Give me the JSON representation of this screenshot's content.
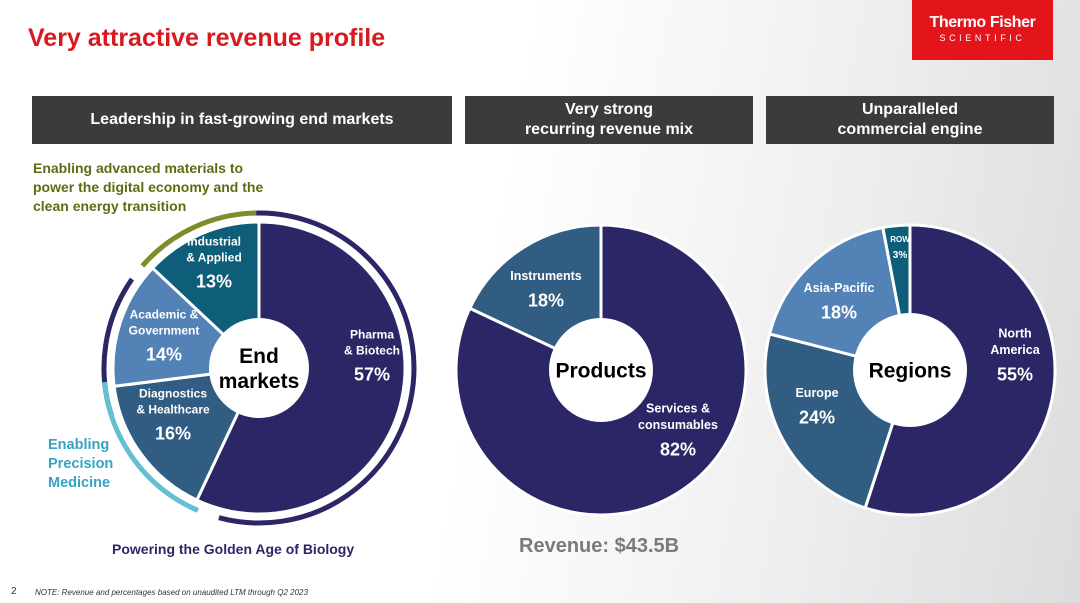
{
  "title": "Very attractive revenue profile",
  "logo": {
    "brand": "Thermo Fisher",
    "sub": "SCIENTIFIC"
  },
  "headers": [
    {
      "line1": "Leadership in fast-growing end markets",
      "line2": ""
    },
    {
      "line1": "Very strong",
      "line2": "recurring revenue mix"
    },
    {
      "line1": "Unparalleled",
      "line2": "commercial engine"
    }
  ],
  "callouts": {
    "materials": "Enabling advanced materials to power the digital economy and the clean energy transition",
    "precision": [
      "Enabling",
      "Precision",
      "Medicine"
    ],
    "powering": "Powering the Golden Age of Biology"
  },
  "revenue": "Revenue: $43.5B",
  "footer": {
    "page": "2",
    "note": "NOTE: Revenue and percentages based on unaudited LTM through Q2 2023"
  },
  "colors": {
    "title_red": "#d71920",
    "dark_navy": "#2b2766",
    "steel_blue": "#315d82",
    "mid_blue": "#5383b6",
    "teal": "#0e5e79",
    "olive": "#7c8d2a",
    "light_teal": "#62c0d3",
    "header_gray": "#3b3b3b"
  },
  "chart_data": [
    {
      "type": "pie",
      "center_label": "End markets",
      "categories": [
        "Pharma & Biotech",
        "Diagnostics & Healthcare",
        "Academic & Government",
        "Industrial & Applied"
      ],
      "values": [
        57,
        16,
        14,
        13
      ],
      "value_labels": [
        "57%",
        "16%",
        "14%",
        "13%"
      ],
      "colors": [
        "#2b2766",
        "#315d82",
        "#5383b6",
        "#0e5e79"
      ]
    },
    {
      "type": "pie",
      "center_label": "Products",
      "categories": [
        "Services & consumables",
        "Instruments"
      ],
      "values": [
        82,
        18
      ],
      "value_labels": [
        "82%",
        "18%"
      ],
      "colors": [
        "#2b2766",
        "#315d82"
      ]
    },
    {
      "type": "pie",
      "center_label": "Regions",
      "categories": [
        "North America",
        "Europe",
        "Asia-Pacific",
        "ROW"
      ],
      "values": [
        55,
        24,
        18,
        3
      ],
      "value_labels": [
        "55%",
        "24%",
        "18%",
        "3%"
      ],
      "colors": [
        "#2b2766",
        "#315d82",
        "#5383b6",
        "#0e5e79"
      ]
    }
  ]
}
